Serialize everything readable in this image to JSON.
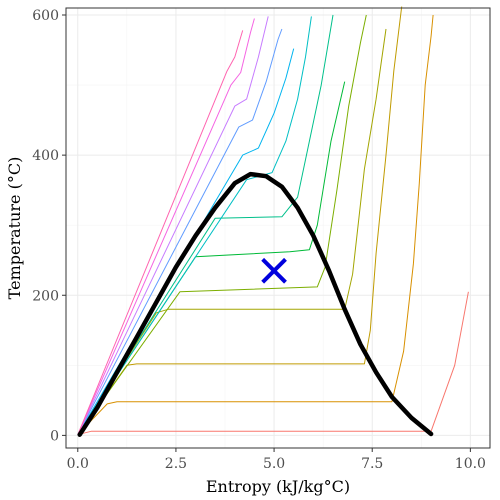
{
  "chart_data": {
    "type": "line",
    "title": "",
    "xlabel": "Entropy (kJ/kg°C)",
    "ylabel": "Temperature (°C)",
    "xlim": [
      -0.3,
      10.5
    ],
    "ylim": [
      -18,
      610
    ],
    "x_ticks": [
      0.0,
      2.5,
      5.0,
      7.5,
      10.0
    ],
    "x_tick_labels": [
      "0.0",
      "2.5",
      "5.0",
      "7.5",
      "10.0"
    ],
    "y_ticks": [
      0,
      200,
      400,
      600
    ],
    "y_tick_labels": [
      "0",
      "200",
      "400",
      "600"
    ],
    "grid": true,
    "legend": "none",
    "saturation_dome": {
      "color": "#000000",
      "points": [
        [
          0.05,
          1
        ],
        [
          0.5,
          40
        ],
        [
          1.0,
          90
        ],
        [
          1.5,
          140
        ],
        [
          2.0,
          190
        ],
        [
          2.5,
          240
        ],
        [
          3.0,
          285
        ],
        [
          3.5,
          325
        ],
        [
          4.0,
          360
        ],
        [
          4.4,
          373
        ],
        [
          4.8,
          370
        ],
        [
          5.2,
          355
        ],
        [
          5.6,
          325
        ],
        [
          6.0,
          285
        ],
        [
          6.4,
          235
        ],
        [
          6.8,
          180
        ],
        [
          7.2,
          130
        ],
        [
          7.6,
          90
        ],
        [
          8.0,
          55
        ],
        [
          8.5,
          25
        ],
        [
          9.0,
          2
        ]
      ]
    },
    "marker": {
      "shape": "x",
      "color": "#0000dd",
      "x": 5.0,
      "y": 235
    },
    "isobars": [
      {
        "color": "#f8766d",
        "points": [
          [
            0.0,
            1
          ],
          [
            0.35,
            6
          ],
          [
            9.0,
            6
          ],
          [
            9.6,
            100
          ],
          [
            9.95,
            205
          ]
        ]
      },
      {
        "color": "#d89000",
        "points": [
          [
            0.0,
            1
          ],
          [
            0.75,
            45
          ],
          [
            1.0,
            48
          ],
          [
            8.0,
            48
          ],
          [
            8.3,
            120
          ],
          [
            8.55,
            245
          ],
          [
            8.7,
            360
          ],
          [
            8.85,
            500
          ],
          [
            9.0,
            570
          ],
          [
            9.05,
            600
          ]
        ]
      },
      {
        "color": "#c09b00",
        "points": [
          [
            0.0,
            1
          ],
          [
            1.25,
            100
          ],
          [
            1.5,
            102
          ],
          [
            7.3,
            102
          ],
          [
            7.45,
            150
          ],
          [
            7.6,
            260
          ],
          [
            7.85,
            400
          ],
          [
            8.05,
            520
          ],
          [
            8.25,
            612
          ]
        ]
      },
      {
        "color": "#a3a500",
        "points": [
          [
            0.0,
            1
          ],
          [
            2.0,
            175
          ],
          [
            2.3,
            180
          ],
          [
            6.8,
            180
          ],
          [
            7.0,
            230
          ],
          [
            7.3,
            380
          ],
          [
            7.6,
            480
          ],
          [
            7.75,
            540
          ],
          [
            7.85,
            580
          ]
        ]
      },
      {
        "color": "#7cae00",
        "points": [
          [
            0.0,
            1
          ],
          [
            2.6,
            205
          ],
          [
            6.1,
            212
          ],
          [
            6.3,
            240
          ],
          [
            6.6,
            350
          ],
          [
            6.9,
            470
          ],
          [
            7.2,
            560
          ],
          [
            7.35,
            600
          ]
        ]
      },
      {
        "color": "#00ba38",
        "points": [
          [
            0.0,
            1
          ],
          [
            3.0,
            255
          ],
          [
            5.4,
            262
          ],
          [
            5.9,
            265
          ],
          [
            6.1,
            300
          ],
          [
            6.45,
            420
          ],
          [
            6.8,
            505
          ]
        ]
      },
      {
        "color": "#00c08b",
        "points": [
          [
            0.0,
            1
          ],
          [
            3.5,
            310
          ],
          [
            5.2,
            312
          ],
          [
            5.6,
            340
          ],
          [
            5.9,
            420
          ],
          [
            6.2,
            500
          ],
          [
            6.5,
            600
          ]
        ]
      },
      {
        "color": "#00bfc4",
        "points": [
          [
            0.0,
            1
          ],
          [
            4.3,
            365
          ],
          [
            4.95,
            375
          ],
          [
            5.3,
            420
          ],
          [
            5.6,
            480
          ],
          [
            5.8,
            540
          ],
          [
            5.95,
            598
          ]
        ]
      },
      {
        "color": "#00b4ef",
        "points": [
          [
            0.0,
            1
          ],
          [
            4.2,
            400
          ],
          [
            4.6,
            410
          ],
          [
            5.0,
            460
          ],
          [
            5.3,
            510
          ],
          [
            5.5,
            552
          ]
        ]
      },
      {
        "color": "#619cff",
        "points": [
          [
            0.0,
            1
          ],
          [
            4.1,
            440
          ],
          [
            4.45,
            450
          ],
          [
            4.8,
            505
          ],
          [
            5.1,
            565
          ],
          [
            5.2,
            580
          ]
        ]
      },
      {
        "color": "#c77cff",
        "points": [
          [
            0.0,
            1
          ],
          [
            4.0,
            470
          ],
          [
            4.3,
            480
          ],
          [
            4.6,
            540
          ],
          [
            4.85,
            598
          ]
        ]
      },
      {
        "color": "#f564e3",
        "points": [
          [
            0.0,
            1
          ],
          [
            3.9,
            500
          ],
          [
            4.15,
            518
          ],
          [
            4.4,
            575
          ],
          [
            4.5,
            595
          ]
        ]
      },
      {
        "color": "#ff64b0",
        "points": [
          [
            0.0,
            1
          ],
          [
            3.8,
            520
          ],
          [
            4.0,
            540
          ],
          [
            4.2,
            578
          ]
        ]
      }
    ]
  }
}
